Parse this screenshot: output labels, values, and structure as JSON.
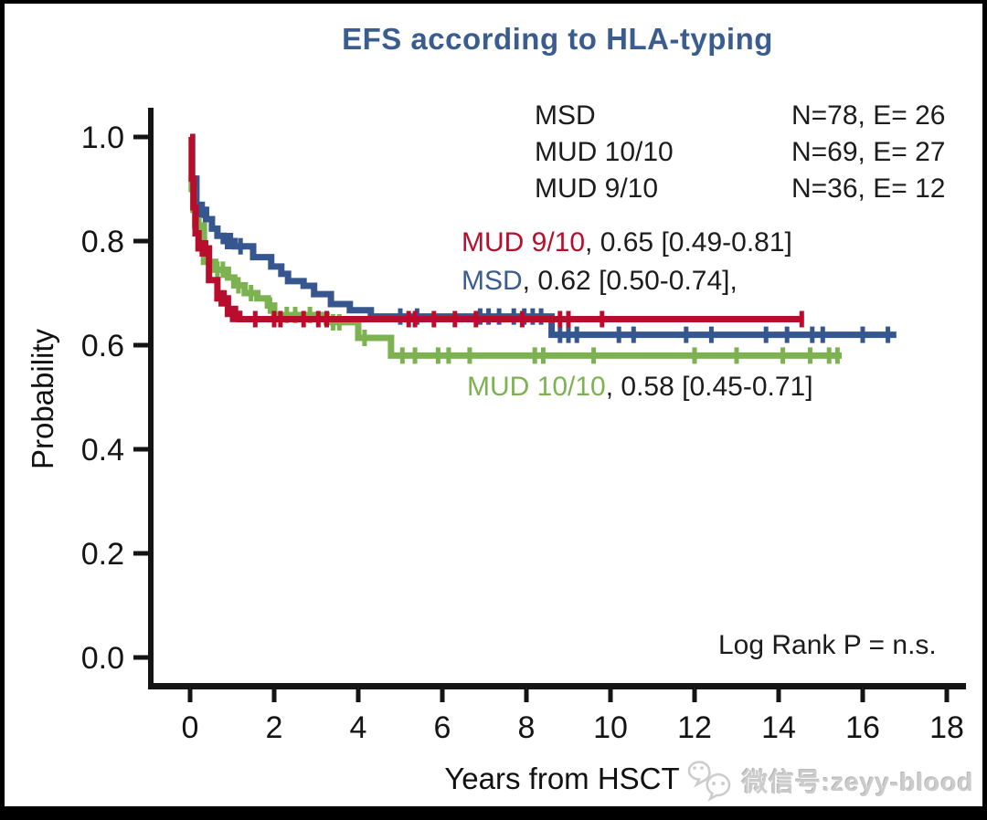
{
  "title": {
    "text": "EFS according to HLA-typing",
    "color": "#3a5c8e"
  },
  "legend": {
    "rows": [
      {
        "name": "MSD",
        "stats": "N=78, E= 26"
      },
      {
        "name": "MUD 10/10",
        "stats": "N=69, E= 27"
      },
      {
        "name": "MUD 9/10",
        "stats": "N=36, E= 12"
      }
    ]
  },
  "annotations": [
    {
      "name": "MUD 9/10",
      "rest": ", 0.65 [0.49-0.81]",
      "color": "#b80d2d"
    },
    {
      "name": "MSD",
      "rest": ", 0.62 [0.50-0.74],",
      "color": "#3a5c8e"
    },
    {
      "name": "MUD 10/10",
      "rest": ", 0.58 [0.45-0.71]",
      "color": "#7cb350"
    }
  ],
  "stats_note": "Log Rank P = n.s.",
  "axes": {
    "xlabel": "Years from HSCT",
    "ylabel": "Probability",
    "x_ticks": [
      0,
      2,
      4,
      6,
      8,
      10,
      12,
      14,
      16,
      18
    ],
    "y_ticks": [
      {
        "label": "0.0",
        "value": 0.0
      },
      {
        "label": "0.2",
        "value": 0.2
      },
      {
        "label": "0.4",
        "value": 0.4
      },
      {
        "label": "0.6",
        "value": 0.6
      },
      {
        "label": "0.8",
        "value": 0.8
      },
      {
        "label": "1.0",
        "value": 1.0
      }
    ]
  },
  "watermark": {
    "icon": "wechat-icon",
    "text": "微信号:zeyy-blood",
    "color": "#cccccc"
  },
  "chart_data": {
    "type": "line",
    "subtype": "kaplan_meier_step",
    "title": "EFS according to HLA-typing",
    "xlabel": "Years from HSCT",
    "ylabel": "Probability",
    "xlim": [
      0,
      18
    ],
    "ylim": [
      0.0,
      1.0
    ],
    "grid": false,
    "legend_position": "top-right",
    "annotation": "Log Rank P = n.s.",
    "series": [
      {
        "id": "msd",
        "name": "MSD",
        "color": "#35568e",
        "n": 78,
        "events": 26,
        "estimate": "0.62 [0.50-0.74]",
        "steps": [
          [
            0,
            1.0
          ],
          [
            0.05,
            0.92
          ],
          [
            0.15,
            0.86
          ],
          [
            0.38,
            0.842
          ],
          [
            0.52,
            0.824
          ],
          [
            0.65,
            0.81
          ],
          [
            0.8,
            0.8
          ],
          [
            1.06,
            0.79
          ],
          [
            1.5,
            0.769
          ],
          [
            1.93,
            0.751
          ],
          [
            2.17,
            0.737
          ],
          [
            2.33,
            0.723
          ],
          [
            2.7,
            0.714
          ],
          [
            2.95,
            0.698
          ],
          [
            3.35,
            0.679
          ],
          [
            3.8,
            0.667
          ],
          [
            4.3,
            0.655
          ],
          [
            8.6,
            0.62
          ]
        ],
        "end": 16.8,
        "censors": [
          [
            0.2,
            0.86
          ],
          [
            0.3,
            0.86
          ],
          [
            0.88,
            0.8
          ],
          [
            0.97,
            0.8
          ],
          [
            1.2,
            0.79
          ],
          [
            5.0,
            0.655
          ],
          [
            5.4,
            0.655
          ],
          [
            6.9,
            0.655
          ],
          [
            7.1,
            0.655
          ],
          [
            7.35,
            0.655
          ],
          [
            7.7,
            0.655
          ],
          [
            7.95,
            0.655
          ],
          [
            8.15,
            0.655
          ],
          [
            8.35,
            0.655
          ],
          [
            8.8,
            0.62
          ],
          [
            9.0,
            0.62
          ],
          [
            9.2,
            0.62
          ],
          [
            10.2,
            0.62
          ],
          [
            10.55,
            0.62
          ],
          [
            11.8,
            0.62
          ],
          [
            12.4,
            0.62
          ],
          [
            13.7,
            0.62
          ],
          [
            14.2,
            0.62
          ],
          [
            14.8,
            0.62
          ],
          [
            15.05,
            0.62
          ],
          [
            16.0,
            0.62
          ],
          [
            16.6,
            0.62
          ]
        ]
      },
      {
        "id": "mud1010",
        "name": "MUD 10/10",
        "color": "#7cb350",
        "n": 69,
        "events": 27,
        "estimate": "0.58 [0.45-0.71]",
        "steps": [
          [
            0,
            1.0
          ],
          [
            0.04,
            0.9
          ],
          [
            0.08,
            0.86
          ],
          [
            0.12,
            0.83
          ],
          [
            0.33,
            0.76
          ],
          [
            0.6,
            0.745
          ],
          [
            0.9,
            0.73
          ],
          [
            1.05,
            0.715
          ],
          [
            1.3,
            0.7
          ],
          [
            1.6,
            0.69
          ],
          [
            1.85,
            0.676
          ],
          [
            2.0,
            0.658
          ],
          [
            3.25,
            0.644
          ],
          [
            4.0,
            0.614
          ],
          [
            4.78,
            0.58
          ]
        ],
        "end": 15.5,
        "censors": [
          [
            0.22,
            0.83
          ],
          [
            0.65,
            0.745
          ],
          [
            0.78,
            0.745
          ],
          [
            1.15,
            0.715
          ],
          [
            1.45,
            0.7
          ],
          [
            1.9,
            0.676
          ],
          [
            2.3,
            0.658
          ],
          [
            2.5,
            0.658
          ],
          [
            2.85,
            0.658
          ],
          [
            3.4,
            0.644
          ],
          [
            3.55,
            0.644
          ],
          [
            4.15,
            0.614
          ],
          [
            5.05,
            0.58
          ],
          [
            5.35,
            0.58
          ],
          [
            5.9,
            0.58
          ],
          [
            6.15,
            0.58
          ],
          [
            6.65,
            0.58
          ],
          [
            8.2,
            0.58
          ],
          [
            8.4,
            0.58
          ],
          [
            9.6,
            0.58
          ],
          [
            12.0,
            0.58
          ],
          [
            13.0,
            0.58
          ],
          [
            14.1,
            0.58
          ],
          [
            14.75,
            0.58
          ],
          [
            15.2,
            0.58
          ],
          [
            15.4,
            0.58
          ]
        ]
      },
      {
        "id": "mud910",
        "name": "MUD 9/10",
        "color": "#b80d2d",
        "n": 36,
        "events": 12,
        "estimate": "0.65 [0.49-0.81]",
        "steps": [
          [
            0,
            1.0
          ],
          [
            0.04,
            0.92
          ],
          [
            0.08,
            0.865
          ],
          [
            0.13,
            0.815
          ],
          [
            0.2,
            0.786
          ],
          [
            0.45,
            0.725
          ],
          [
            0.65,
            0.69
          ],
          [
            0.9,
            0.66
          ],
          [
            1.17,
            0.65
          ]
        ],
        "end": 14.6,
        "censors": [
          [
            0.28,
            0.786
          ],
          [
            0.38,
            0.786
          ],
          [
            0.73,
            0.69
          ],
          [
            0.82,
            0.69
          ],
          [
            1.0,
            0.66
          ],
          [
            1.09,
            0.66
          ],
          [
            1.55,
            0.65
          ],
          [
            2.0,
            0.65
          ],
          [
            2.15,
            0.65
          ],
          [
            2.7,
            0.65
          ],
          [
            3.05,
            0.65
          ],
          [
            3.25,
            0.65
          ],
          [
            5.2,
            0.65
          ],
          [
            5.35,
            0.65
          ],
          [
            5.8,
            0.65
          ],
          [
            6.3,
            0.65
          ],
          [
            6.8,
            0.65
          ],
          [
            7.9,
            0.65
          ],
          [
            8.8,
            0.65
          ],
          [
            9.0,
            0.65
          ],
          [
            9.8,
            0.65
          ],
          [
            14.55,
            0.65
          ]
        ]
      }
    ]
  }
}
